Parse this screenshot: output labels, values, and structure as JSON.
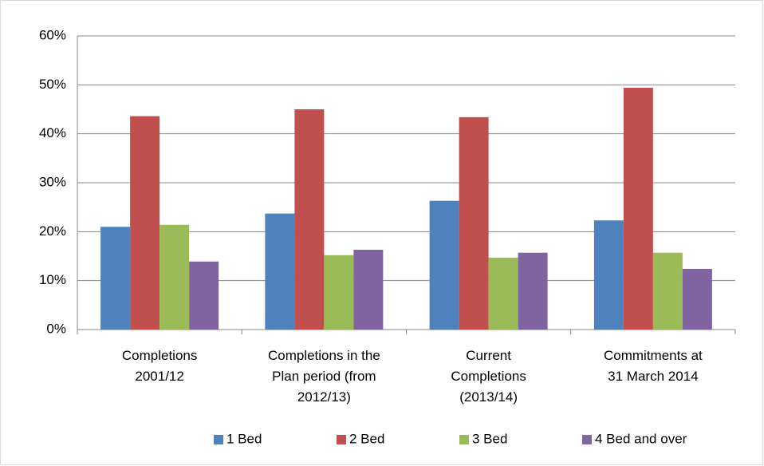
{
  "chart_data": {
    "type": "bar",
    "categories": [
      "Completions\n2001/12",
      "Completions in the\nPlan period (from\n2012/13)",
      "Current\nCompletions\n(2013/14)",
      "Commitments at\n31 March 2014"
    ],
    "series": [
      {
        "name": "1 Bed",
        "color": "#4f81bd",
        "values": [
          21.0,
          23.7,
          26.3,
          22.3
        ]
      },
      {
        "name": "2 Bed",
        "color": "#c0504d",
        "values": [
          43.6,
          45.0,
          43.4,
          49.4
        ]
      },
      {
        "name": "3 Bed",
        "color": "#9bbb59",
        "values": [
          21.4,
          15.2,
          14.7,
          15.7
        ]
      },
      {
        "name": "4 Bed and over",
        "color": "#8064a2",
        "values": [
          13.9,
          16.3,
          15.7,
          12.4
        ]
      }
    ],
    "ylim": [
      0,
      60
    ],
    "yticks": [
      {
        "value": 0,
        "label": "0%"
      },
      {
        "value": 10,
        "label": "10%"
      },
      {
        "value": 20,
        "label": "20%"
      },
      {
        "value": 30,
        "label": "30%"
      },
      {
        "value": 40,
        "label": "40%"
      },
      {
        "value": 50,
        "label": "50%"
      },
      {
        "value": 60,
        "label": "60%"
      }
    ],
    "grid": true,
    "legend": "bottom"
  }
}
